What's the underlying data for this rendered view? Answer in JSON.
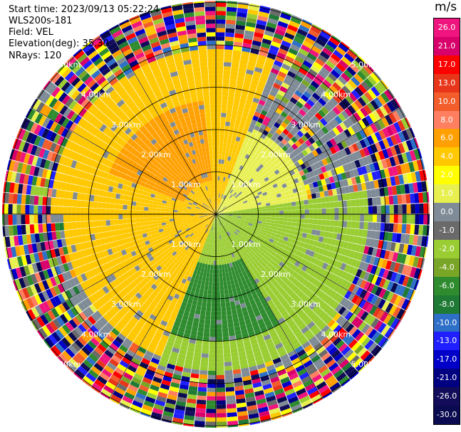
{
  "header": {
    "start_time": "Start time: 2023/09/13 05:22:24",
    "instrument": "WLS200s-181",
    "field": "Field: VEL",
    "elevation": "Elevation(deg): 35.30",
    "nrays": "NRays: 120"
  },
  "chart_data": {
    "type": "ppi_radar",
    "field": "VEL",
    "units": "m/s",
    "nrays": 120,
    "elevation_deg": 35.3,
    "range_rings_km": [
      1.0,
      2.0,
      3.0,
      4.0,
      5.0
    ],
    "ring_labels": [
      "1.00km",
      "2.00km",
      "3.00km",
      "4.00km",
      "5.00km"
    ],
    "colorbar": {
      "ticks": [
        "26.0",
        "21.0",
        "17.0",
        "13.0",
        "10.0",
        "8.0",
        "6.0",
        "4.0",
        "2.0",
        "1.0",
        "0.0",
        "-1.0",
        "-2.0",
        "-4.0",
        "-6.0",
        "-8.0",
        "-10.0",
        "-13.0",
        "-17.0",
        "-21.0",
        "-26.0",
        "-30.0"
      ],
      "colors": [
        "#f0157e",
        "#d8006a",
        "#ff0000",
        "#e8361b",
        "#f25d2b",
        "#ff7f60",
        "#ffa000",
        "#ffc800",
        "#ffff00",
        "#e8f050",
        "#7f8b96",
        "#6a6a6a",
        "#9acd32",
        "#7aa628",
        "#2e8b2e",
        "#1f7a35",
        "#2e6fc8",
        "#1f1fff",
        "#0000c8",
        "#000080",
        "#120c5a",
        "#0a0a50"
      ]
    },
    "regions": [
      {
        "from_deg": 270,
        "to_deg": 20,
        "max_km": 3.9,
        "value": 4.0
      },
      {
        "from_deg": 290,
        "to_deg": 355,
        "min_km": 0.8,
        "max_km": 2.7,
        "value": 6.0
      },
      {
        "from_deg": 20,
        "to_deg": 80,
        "max_km": 2.2,
        "value": 1.0
      },
      {
        "from_deg": 80,
        "to_deg": 130,
        "max_km": 3.6,
        "value": -2.0
      },
      {
        "from_deg": 130,
        "to_deg": 200,
        "max_km": 3.7,
        "value": -2.0
      },
      {
        "from_deg": 150,
        "to_deg": 200,
        "min_km": 1.2,
        "max_km": 3.0,
        "value": -6.0
      },
      {
        "from_deg": 200,
        "to_deg": 270,
        "max_km": 3.6,
        "value": 4.0
      }
    ]
  }
}
